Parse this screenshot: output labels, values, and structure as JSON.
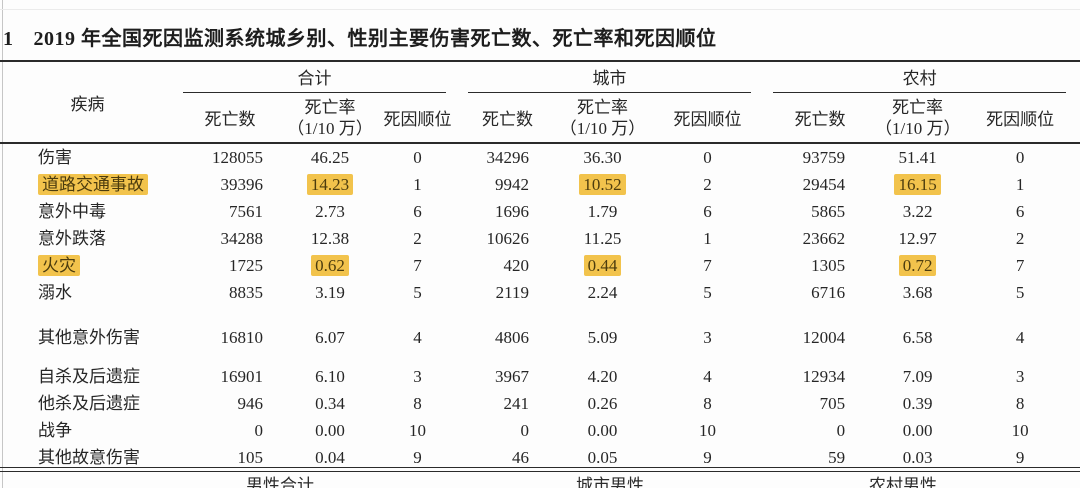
{
  "title": {
    "marker": "1",
    "text": "2019 年全国死因监测系统城乡别、性别主要伤害死亡数、死亡率和死因顺位"
  },
  "table": {
    "disease_header": "疾病",
    "groups": [
      {
        "label": "合计"
      },
      {
        "label": "城市"
      },
      {
        "label": "农村"
      }
    ],
    "col_headers": {
      "deaths": "死亡数",
      "rate": "死亡率",
      "rate_unit": "（1/10 万）",
      "rank": "死因顺位"
    },
    "rows": [
      {
        "disease": "伤害",
        "hl": false,
        "gap": "",
        "t": [
          "128055",
          "46.25",
          "0"
        ],
        "u": [
          "34296",
          "36.30",
          "0"
        ],
        "r": [
          "93759",
          "51.41",
          "0"
        ]
      },
      {
        "disease": "道路交通事故",
        "hl": true,
        "gap": "",
        "t": [
          "39396",
          "14.23",
          "1"
        ],
        "u": [
          "9942",
          "10.52",
          "2"
        ],
        "r": [
          "29454",
          "16.15",
          "1"
        ]
      },
      {
        "disease": "意外中毒",
        "hl": false,
        "gap": "",
        "t": [
          "7561",
          "2.73",
          "6"
        ],
        "u": [
          "1696",
          "1.79",
          "6"
        ],
        "r": [
          "5865",
          "3.22",
          "6"
        ]
      },
      {
        "disease": "意外跌落",
        "hl": false,
        "gap": "",
        "t": [
          "34288",
          "12.38",
          "2"
        ],
        "u": [
          "10626",
          "11.25",
          "1"
        ],
        "r": [
          "23662",
          "12.97",
          "2"
        ]
      },
      {
        "disease": "火灾",
        "hl": true,
        "gap": "",
        "t": [
          "1725",
          "0.62",
          "7"
        ],
        "u": [
          "420",
          "0.44",
          "7"
        ],
        "r": [
          "1305",
          "0.72",
          "7"
        ]
      },
      {
        "disease": "溺水",
        "hl": false,
        "gap": "",
        "t": [
          "8835",
          "3.19",
          "5"
        ],
        "u": [
          "2119",
          "2.24",
          "5"
        ],
        "r": [
          "6716",
          "3.68",
          "5"
        ]
      },
      {
        "disease": "其他意外伤害",
        "hl": false,
        "gap": "lg",
        "t": [
          "16810",
          "6.07",
          "4"
        ],
        "u": [
          "4806",
          "5.09",
          "3"
        ],
        "r": [
          "12004",
          "6.58",
          "4"
        ]
      },
      {
        "disease": "自杀及后遗症",
        "hl": false,
        "gap": "sm",
        "t": [
          "16901",
          "6.10",
          "3"
        ],
        "u": [
          "3967",
          "4.20",
          "4"
        ],
        "r": [
          "12934",
          "7.09",
          "3"
        ]
      },
      {
        "disease": "他杀及后遗症",
        "hl": false,
        "gap": "",
        "t": [
          "946",
          "0.34",
          "8"
        ],
        "u": [
          "241",
          "0.26",
          "8"
        ],
        "r": [
          "705",
          "0.39",
          "8"
        ]
      },
      {
        "disease": "战争",
        "hl": false,
        "gap": "",
        "t": [
          "0",
          "0.00",
          "10"
        ],
        "u": [
          "0",
          "0.00",
          "10"
        ],
        "r": [
          "0",
          "0.00",
          "10"
        ]
      },
      {
        "disease": "其他故意伤害",
        "hl": false,
        "gap": "",
        "t": [
          "105",
          "0.04",
          "9"
        ],
        "u": [
          "46",
          "0.05",
          "9"
        ],
        "r": [
          "59",
          "0.03",
          "9"
        ]
      }
    ],
    "next_section_labels": [
      "男性合计",
      "城市男性",
      "农村男性"
    ]
  },
  "colors": {
    "highlight": "#f2c34c",
    "rule": "#2b2b2b",
    "text": "#262626"
  }
}
